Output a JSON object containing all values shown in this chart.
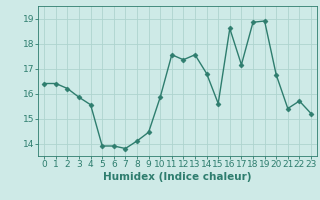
{
  "x": [
    0,
    1,
    2,
    3,
    4,
    5,
    6,
    7,
    8,
    9,
    10,
    11,
    12,
    13,
    14,
    15,
    16,
    17,
    18,
    19,
    20,
    21,
    22,
    23
  ],
  "y": [
    16.4,
    16.4,
    16.2,
    15.85,
    15.55,
    13.9,
    13.9,
    13.8,
    14.1,
    14.45,
    15.85,
    17.55,
    17.35,
    17.55,
    16.8,
    15.6,
    18.6,
    17.15,
    18.85,
    18.9,
    16.75,
    15.4,
    15.7,
    15.2
  ],
  "line_color": "#2e7d6e",
  "marker": "D",
  "markersize": 2.5,
  "linewidth": 1.0,
  "bg_color": "#ceeae7",
  "grid_color": "#aed4cf",
  "xlabel": "Humidex (Indice chaleur)",
  "xlim": [
    -0.5,
    23.5
  ],
  "ylim": [
    13.5,
    19.5
  ],
  "yticks": [
    14,
    15,
    16,
    17,
    18,
    19
  ],
  "xticks": [
    0,
    1,
    2,
    3,
    4,
    5,
    6,
    7,
    8,
    9,
    10,
    11,
    12,
    13,
    14,
    15,
    16,
    17,
    18,
    19,
    20,
    21,
    22,
    23
  ],
  "tick_color": "#2e7d6e",
  "xlabel_fontsize": 7.5,
  "tick_fontsize": 6.5
}
